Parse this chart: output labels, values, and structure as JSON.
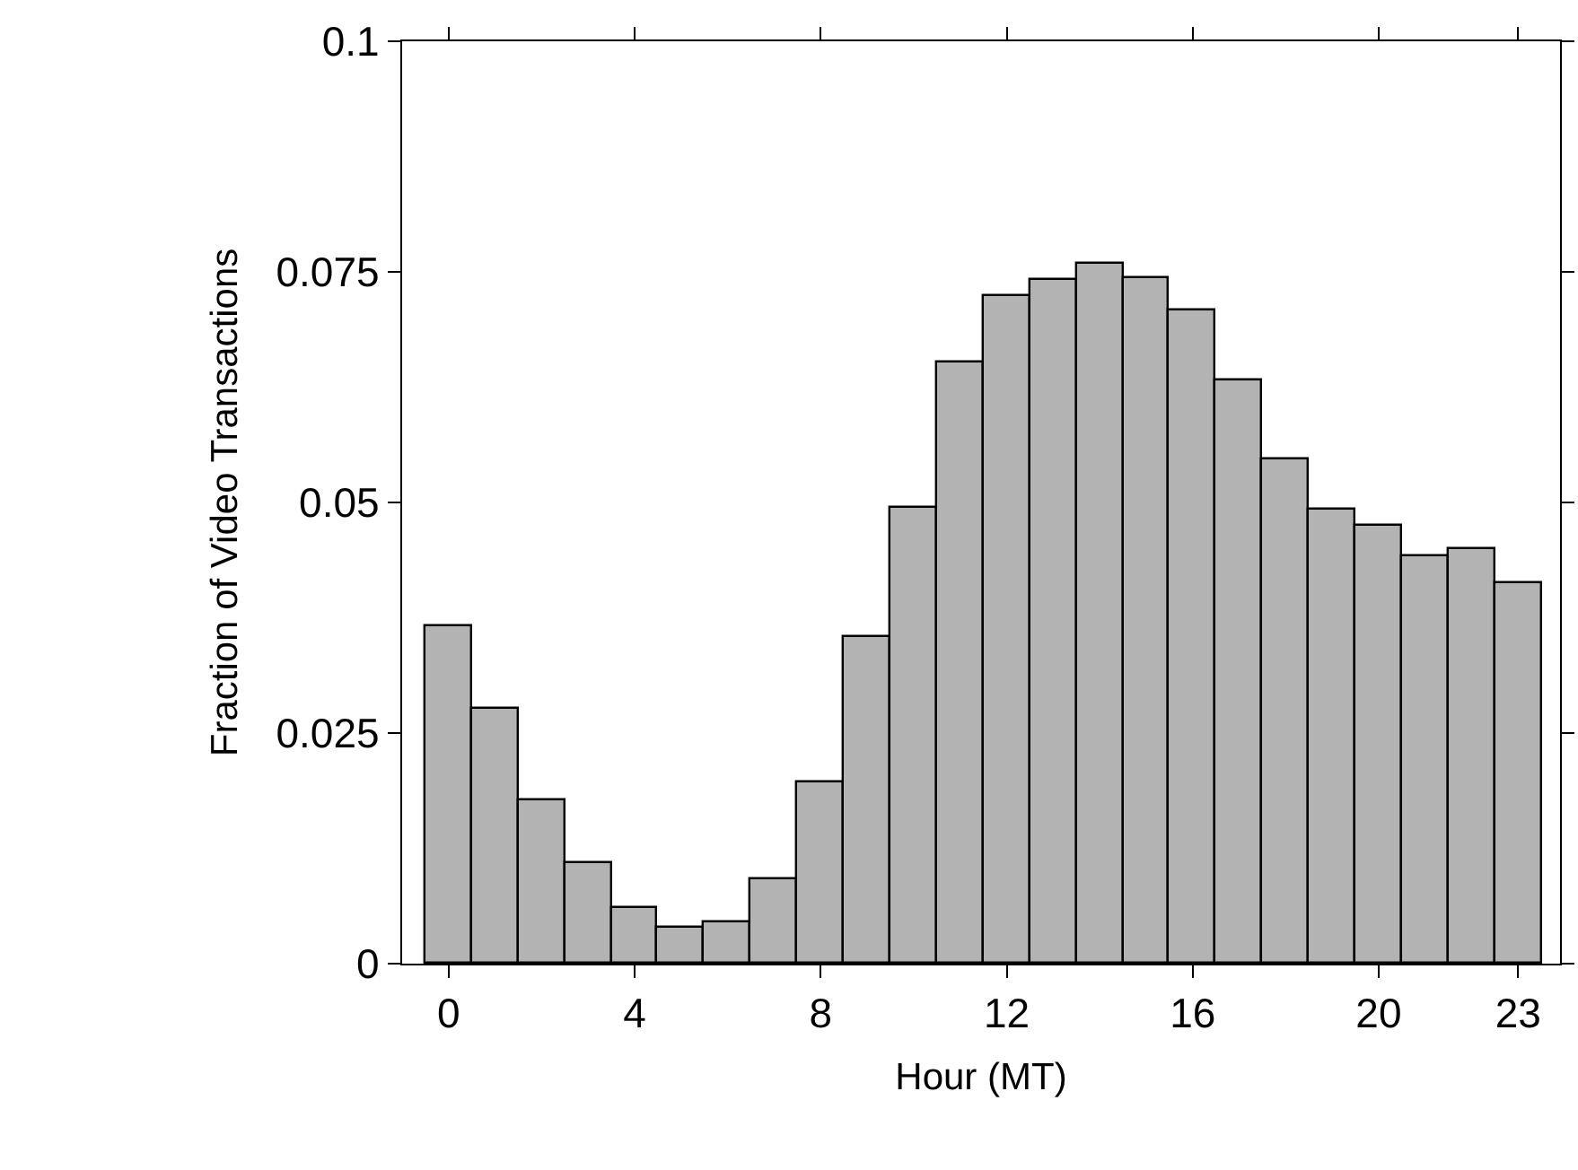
{
  "chart_data": {
    "type": "bar",
    "xlabel": "Hour (MT)",
    "ylabel": "Fraction of Video Transactions",
    "x": [
      0,
      1,
      2,
      3,
      4,
      5,
      6,
      7,
      8,
      9,
      10,
      11,
      12,
      13,
      14,
      15,
      16,
      17,
      18,
      19,
      20,
      21,
      22,
      23
    ],
    "values": [
      0.0365,
      0.0276,
      0.0177,
      0.0108,
      0.0061,
      0.0038,
      0.0045,
      0.0091,
      0.0197,
      0.0355,
      0.0494,
      0.0652,
      0.0723,
      0.0742,
      0.0759,
      0.0743,
      0.0709,
      0.0633,
      0.0547,
      0.0492,
      0.0474,
      0.0441,
      0.0449,
      0.0412
    ],
    "color": "#b3b3b3",
    "xlim": [
      -1,
      23.9
    ],
    "xticks": [
      0,
      4,
      8,
      12,
      16,
      20,
      23
    ],
    "yticks": [
      0,
      0.025,
      0.05,
      0.075,
      0.1
    ],
    "ylim": [
      0,
      0.1
    ]
  }
}
